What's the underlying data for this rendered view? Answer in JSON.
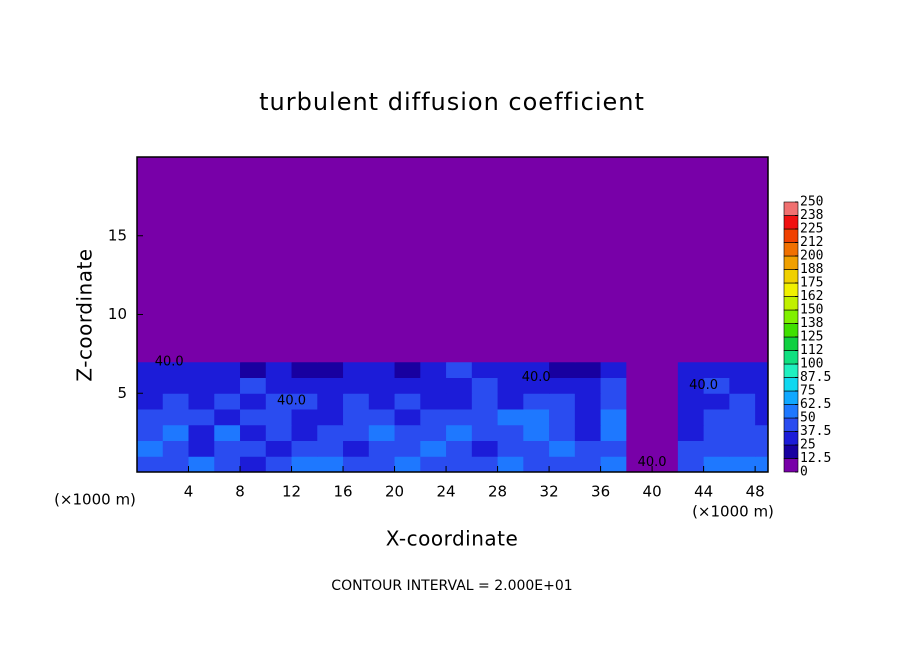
{
  "chart_data": {
    "type": "heatmap",
    "title": "turbulent diffusion coefficient",
    "xlabel": "X-coordinate",
    "ylabel": "Z-coordinate",
    "x_unit": "(×1000 m)",
    "annotation": "CONTOUR INTERVAL = 2.000E+01",
    "xlim": [
      0,
      49
    ],
    "ylim": [
      0,
      20
    ],
    "xticks": [
      4,
      8,
      12,
      16,
      20,
      24,
      28,
      32,
      36,
      40,
      44,
      48
    ],
    "yticks": [
      5,
      10,
      15
    ],
    "x": [
      1,
      3,
      5,
      7,
      9,
      11,
      13,
      15,
      17,
      19,
      21,
      23,
      25,
      27,
      29,
      31,
      33,
      35,
      37,
      39,
      41,
      43,
      45,
      47,
      49
    ],
    "z": [
      0.5,
      1.5,
      2.5,
      3.5,
      4.5,
      5.5,
      6.5,
      7.5
    ],
    "values": [
      [
        40,
        45,
        50,
        40,
        35,
        45,
        55,
        50,
        40,
        45,
        50,
        45,
        40,
        45,
        50,
        40,
        45,
        40,
        50,
        5,
        10,
        45,
        50,
        55,
        50
      ],
      [
        50,
        40,
        30,
        45,
        40,
        30,
        45,
        40,
        35,
        40,
        45,
        50,
        40,
        35,
        40,
        45,
        50,
        40,
        45,
        5,
        5,
        40,
        45,
        40,
        45
      ],
      [
        45,
        55,
        35,
        50,
        35,
        40,
        30,
        45,
        40,
        55,
        40,
        45,
        50,
        40,
        45,
        50,
        40,
        35,
        50,
        10,
        5,
        35,
        40,
        45,
        40
      ],
      [
        40,
        45,
        40,
        35,
        45,
        40,
        35,
        30,
        45,
        40,
        30,
        40,
        45,
        40,
        50,
        55,
        45,
        35,
        60,
        10,
        5,
        30,
        40,
        40,
        35
      ],
      [
        35,
        40,
        35,
        40,
        30,
        45,
        40,
        35,
        40,
        30,
        40,
        35,
        30,
        40,
        35,
        40,
        45,
        35,
        45,
        5,
        5,
        30,
        35,
        40,
        35
      ],
      [
        30,
        35,
        30,
        35,
        40,
        30,
        25,
        35,
        35,
        30,
        35,
        30,
        35,
        40,
        30,
        35,
        30,
        30,
        40,
        0,
        0,
        30,
        40,
        30,
        35
      ],
      [
        25,
        30,
        30,
        25,
        20,
        30,
        15,
        20,
        30,
        25,
        20,
        30,
        40,
        30,
        25,
        30,
        20,
        20,
        30,
        0,
        0,
        25,
        30,
        25,
        30
      ],
      [
        0,
        0,
        0,
        0,
        0,
        0,
        0,
        0,
        0,
        0,
        0,
        0,
        5,
        0,
        0,
        0,
        0,
        0,
        0,
        0,
        0,
        0,
        0,
        0,
        0
      ]
    ],
    "colorbar_ticks": [
      0,
      12.5,
      25,
      37.5,
      50,
      62.5,
      75,
      87.5,
      100,
      {
        "value": 112.5,
        "label": "112"
      },
      125,
      {
        "value": 137.5,
        "label": "138"
      },
      150,
      {
        "value": 162.5,
        "label": "162"
      },
      175,
      {
        "value": 187.5,
        "label": "188"
      },
      200,
      {
        "value": 212.5,
        "label": "212"
      },
      225,
      {
        "value": 237.5,
        "label": "238"
      },
      250
    ],
    "colorscale": [
      "#7800a8",
      "#1800a0",
      "#1c1cd8",
      "#2a4cf0",
      "#1e78ff",
      "#10a8ff",
      "#10d8f0",
      "#20f0c0",
      "#10e080",
      "#10d040",
      "#40e000",
      "#80f000",
      "#c0f000",
      "#f0f000",
      "#f0d000",
      "#f0a000",
      "#f07000",
      "#f04000",
      "#f01010",
      "#f07070"
    ],
    "contour_labels": [
      "40.0",
      "40.0",
      "40.0",
      "40.0",
      "40.0"
    ]
  }
}
